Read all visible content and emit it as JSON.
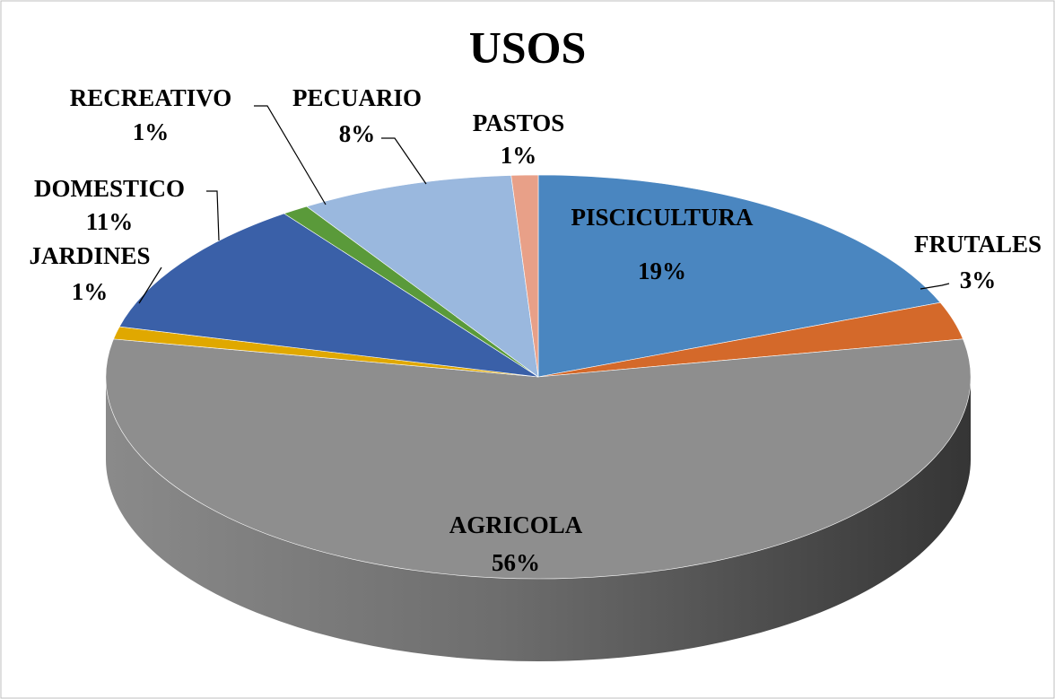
{
  "chart_data": {
    "type": "pie3d",
    "title": "USOS",
    "categories": [
      "PISCICULTURA",
      "FRUTALES",
      "AGRICOLA",
      "JARDINES",
      "DOMESTICO",
      "RECREATIVO",
      "PECUARIO",
      "PASTOS"
    ],
    "values": [
      19,
      3,
      56,
      1,
      11,
      1,
      8,
      1
    ],
    "value_labels": [
      "19%",
      "3%",
      "56%",
      "1%",
      "11%",
      "1%",
      "8%",
      "1%"
    ],
    "colors": [
      "#4a86c0",
      "#d4692a",
      "#8e8e8e",
      "#e0a800",
      "#3a60a8",
      "#5a9a3a",
      "#9ab8de",
      "#e8a088"
    ]
  }
}
